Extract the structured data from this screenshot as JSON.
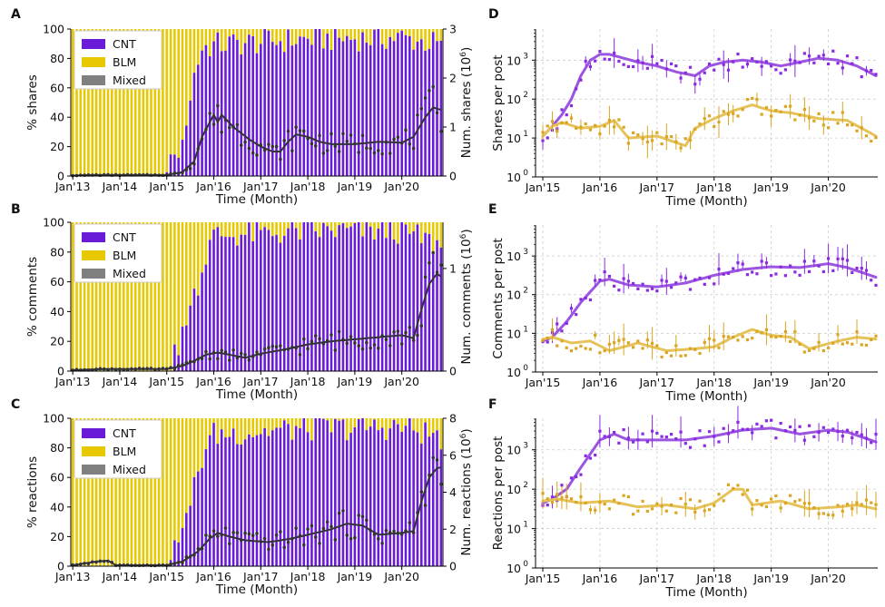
{
  "colors": {
    "cnt": "#6a1bd8",
    "blm": "#e8c800",
    "mixed": "#808080",
    "count_line": "#333333",
    "cnt_line": "#9b55e0",
    "blm_line": "#e5c35a",
    "cnt_point": "#8a2be2",
    "blm_point": "#daa520",
    "grid": "#cccccc"
  },
  "chart_data": [
    {
      "id": "A",
      "panel_letter": "A",
      "type": "bar",
      "stacked": true,
      "title": "",
      "xlabel": "Time (Month)",
      "ylabel": "% shares",
      "y2label": "Num. shares (10",
      "y2label_sup": "6",
      "y2label_end": ")",
      "xticks": [
        "Jan'13",
        "Jan'14",
        "Jan'15",
        "Jan'16",
        "Jan'17",
        "Jan'18",
        "Jan'19",
        "Jan'20"
      ],
      "ylim": [
        0,
        100
      ],
      "yticks": [
        "0",
        "20",
        "40",
        "60",
        "80",
        "100"
      ],
      "y2lim": [
        0,
        3
      ],
      "y2ticks": [
        "0",
        "1",
        "2",
        "3"
      ],
      "legend": [
        "CNT",
        "BLM",
        "Mixed"
      ],
      "legend_position": "top-left",
      "months": 95,
      "cnt_pct_anchors": [
        [
          0,
          0
        ],
        [
          23,
          0
        ],
        [
          24,
          4
        ],
        [
          27,
          18
        ],
        [
          29,
          30
        ],
        [
          30,
          55
        ],
        [
          31,
          70
        ],
        [
          33,
          88
        ],
        [
          36,
          90
        ],
        [
          48,
          92
        ],
        [
          60,
          94
        ],
        [
          84,
          95
        ],
        [
          94,
          90
        ]
      ],
      "count_line_anchors": [
        [
          0,
          0.01
        ],
        [
          5,
          0.02
        ],
        [
          24,
          0.02
        ],
        [
          28,
          0.08
        ],
        [
          31,
          0.3
        ],
        [
          33,
          0.8
        ],
        [
          35,
          1.1
        ],
        [
          36,
          1.25
        ],
        [
          37,
          1.1
        ],
        [
          38,
          1.25
        ],
        [
          41,
          1.0
        ],
        [
          45,
          0.75
        ],
        [
          48,
          0.6
        ],
        [
          51,
          0.5
        ],
        [
          53,
          0.5
        ],
        [
          55,
          0.7
        ],
        [
          57,
          0.85
        ],
        [
          60,
          0.8
        ],
        [
          63,
          0.7
        ],
        [
          66,
          0.65
        ],
        [
          72,
          0.65
        ],
        [
          78,
          0.7
        ],
        [
          84,
          0.68
        ],
        [
          87,
          0.8
        ],
        [
          90,
          1.2
        ],
        [
          92,
          1.4
        ],
        [
          94,
          1.35
        ]
      ]
    },
    {
      "id": "B",
      "panel_letter": "B",
      "type": "bar",
      "stacked": true,
      "title": "",
      "xlabel": "Time (Month)",
      "ylabel": "% comments",
      "y2label": "Num. comments (10",
      "y2label_sup": "6",
      "y2label_end": ")",
      "xticks": [
        "Jan'13",
        "Jan'14",
        "Jan'15",
        "Jan'16",
        "Jan'17",
        "Jan'18",
        "Jan'19",
        "Jan'20"
      ],
      "ylim": [
        0,
        100
      ],
      "yticks": [
        "0",
        "20",
        "40",
        "60",
        "80",
        "100"
      ],
      "y2lim": [
        0,
        1.45
      ],
      "y2ticks": [
        "0",
        "1"
      ],
      "legend": [
        "CNT",
        "BLM",
        "Mixed"
      ],
      "legend_position": "top-left",
      "months": 95,
      "cnt_pct_anchors": [
        [
          0,
          0
        ],
        [
          24,
          0
        ],
        [
          26,
          10
        ],
        [
          28,
          25
        ],
        [
          30,
          40
        ],
        [
          32,
          60
        ],
        [
          34,
          78
        ],
        [
          36,
          92
        ],
        [
          48,
          93
        ],
        [
          60,
          95
        ],
        [
          84,
          95
        ],
        [
          94,
          85
        ]
      ],
      "count_line_anchors": [
        [
          0,
          0.01
        ],
        [
          8,
          0.02
        ],
        [
          24,
          0.02
        ],
        [
          28,
          0.05
        ],
        [
          31,
          0.1
        ],
        [
          34,
          0.16
        ],
        [
          37,
          0.18
        ],
        [
          40,
          0.16
        ],
        [
          44,
          0.13
        ],
        [
          48,
          0.17
        ],
        [
          54,
          0.21
        ],
        [
          60,
          0.26
        ],
        [
          66,
          0.29
        ],
        [
          72,
          0.31
        ],
        [
          78,
          0.33
        ],
        [
          84,
          0.35
        ],
        [
          87,
          0.32
        ],
        [
          89,
          0.6
        ],
        [
          91,
          0.85
        ],
        [
          93,
          0.95
        ],
        [
          94,
          0.92
        ]
      ]
    },
    {
      "id": "C",
      "panel_letter": "C",
      "type": "bar",
      "stacked": true,
      "title": "",
      "xlabel": "Time (Month)",
      "ylabel": "% reactions",
      "y2label": "Num. reactions (10",
      "y2label_sup": "6",
      "y2label_end": ")",
      "xticks": [
        "Jan'13",
        "Jan'14",
        "Jan'15",
        "Jan'16",
        "Jan'17",
        "Jan'18",
        "Jan'19",
        "Jan'20"
      ],
      "ylim": [
        0,
        100
      ],
      "yticks": [
        "0",
        "20",
        "40",
        "60",
        "80",
        "100"
      ],
      "y2lim": [
        0,
        8
      ],
      "y2ticks": [
        "0",
        "2",
        "4",
        "6",
        "8"
      ],
      "legend": [
        "CNT",
        "BLM",
        "Mixed"
      ],
      "legend_position": "top-left",
      "months": 95,
      "cnt_pct_anchors": [
        [
          0,
          0
        ],
        [
          24,
          0
        ],
        [
          26,
          10
        ],
        [
          28,
          25
        ],
        [
          30,
          45
        ],
        [
          32,
          65
        ],
        [
          34,
          82
        ],
        [
          36,
          90
        ],
        [
          48,
          92
        ],
        [
          60,
          94
        ],
        [
          84,
          95
        ],
        [
          94,
          88
        ]
      ],
      "count_line_anchors": [
        [
          0,
          0.05
        ],
        [
          6,
          0.25
        ],
        [
          9,
          0.3
        ],
        [
          11,
          0.05
        ],
        [
          24,
          0.05
        ],
        [
          28,
          0.25
        ],
        [
          32,
          0.8
        ],
        [
          35,
          1.5
        ],
        [
          37,
          1.8
        ],
        [
          40,
          1.6
        ],
        [
          44,
          1.4
        ],
        [
          50,
          1.3
        ],
        [
          56,
          1.5
        ],
        [
          62,
          1.8
        ],
        [
          66,
          2.0
        ],
        [
          70,
          2.3
        ],
        [
          74,
          2.2
        ],
        [
          78,
          1.7
        ],
        [
          84,
          1.8
        ],
        [
          87,
          1.9
        ],
        [
          89,
          3.5
        ],
        [
          91,
          4.8
        ],
        [
          93,
          5.3
        ],
        [
          94,
          5.35
        ]
      ]
    },
    {
      "id": "D",
      "panel_letter": "D",
      "type": "line",
      "scale": "log",
      "title": "",
      "xlabel": "Time (Month)",
      "ylabel": "Shares per post",
      "xticks": [
        "Jan'15",
        "Jan'16",
        "Jan'17",
        "Jan'18",
        "Jan'19",
        "Jan'20"
      ],
      "ylim_log10": [
        0,
        3.8
      ],
      "yticks": [
        "10",
        "10",
        "10",
        "10"
      ],
      "ytick_exponents": [
        "0",
        "1",
        "2",
        "3"
      ],
      "months": 71,
      "grid": true,
      "series": [
        {
          "key": "cnt",
          "anchors": [
            [
              0,
              1.05
            ],
            [
              2,
              1.3
            ],
            [
              4,
              1.6
            ],
            [
              6,
              2.0
            ],
            [
              8,
              2.6
            ],
            [
              10,
              3.0
            ],
            [
              12,
              3.15
            ],
            [
              14,
              3.15
            ],
            [
              17,
              3.05
            ],
            [
              20,
              2.95
            ],
            [
              24,
              2.85
            ],
            [
              28,
              2.7
            ],
            [
              32,
              2.6
            ],
            [
              35,
              2.85
            ],
            [
              38,
              2.95
            ],
            [
              42,
              3.0
            ],
            [
              46,
              2.95
            ],
            [
              50,
              2.85
            ],
            [
              54,
              2.95
            ],
            [
              58,
              3.05
            ],
            [
              62,
              3.0
            ],
            [
              66,
              2.85
            ],
            [
              70,
              2.6
            ]
          ]
        },
        {
          "key": "blm",
          "anchors": [
            [
              0,
              1.05
            ],
            [
              2,
              1.3
            ],
            [
              4,
              1.4
            ],
            [
              8,
              1.25
            ],
            [
              12,
              1.3
            ],
            [
              15,
              1.45
            ],
            [
              18,
              1.0
            ],
            [
              24,
              1.05
            ],
            [
              30,
              0.8
            ],
            [
              32,
              1.25
            ],
            [
              36,
              1.5
            ],
            [
              40,
              1.7
            ],
            [
              44,
              1.85
            ],
            [
              48,
              1.7
            ],
            [
              52,
              1.65
            ],
            [
              58,
              1.5
            ],
            [
              64,
              1.45
            ],
            [
              70,
              1.05
            ]
          ]
        }
      ]
    },
    {
      "id": "E",
      "panel_letter": "E",
      "type": "line",
      "scale": "log",
      "title": "",
      "xlabel": "Time (Month)",
      "ylabel": "Comments per post",
      "xticks": [
        "Jan'15",
        "Jan'16",
        "Jan'17",
        "Jan'18",
        "Jan'19",
        "Jan'20"
      ],
      "ylim_log10": [
        0,
        3.8
      ],
      "yticks": [
        "10",
        "10",
        "10",
        "10"
      ],
      "ytick_exponents": [
        "0",
        "1",
        "2",
        "3"
      ],
      "months": 71,
      "grid": true,
      "series": [
        {
          "key": "cnt",
          "anchors": [
            [
              0,
              0.8
            ],
            [
              2,
              0.9
            ],
            [
              5,
              1.3
            ],
            [
              8,
              1.8
            ],
            [
              12,
              2.35
            ],
            [
              14,
              2.4
            ],
            [
              18,
              2.25
            ],
            [
              24,
              2.2
            ],
            [
              30,
              2.3
            ],
            [
              36,
              2.5
            ],
            [
              42,
              2.65
            ],
            [
              48,
              2.72
            ],
            [
              54,
              2.7
            ],
            [
              60,
              2.8
            ],
            [
              64,
              2.7
            ],
            [
              70,
              2.45
            ]
          ]
        },
        {
          "key": "blm",
          "anchors": [
            [
              0,
              0.85
            ],
            [
              2,
              0.9
            ],
            [
              6,
              0.75
            ],
            [
              10,
              0.8
            ],
            [
              14,
              0.55
            ],
            [
              20,
              0.75
            ],
            [
              26,
              0.55
            ],
            [
              32,
              0.6
            ],
            [
              36,
              0.65
            ],
            [
              40,
              0.9
            ],
            [
              44,
              1.1
            ],
            [
              48,
              0.95
            ],
            [
              52,
              0.9
            ],
            [
              56,
              0.6
            ],
            [
              62,
              0.8
            ],
            [
              66,
              0.9
            ],
            [
              70,
              0.85
            ]
          ]
        }
      ]
    },
    {
      "id": "F",
      "panel_letter": "F",
      "type": "line",
      "scale": "log",
      "title": "",
      "xlabel": "Time (Month)",
      "ylabel": "Reactions per post",
      "xticks": [
        "Jan'15",
        "Jan'16",
        "Jan'17",
        "Jan'18",
        "Jan'19",
        "Jan'20"
      ],
      "ylim_log10": [
        0,
        3.8
      ],
      "yticks": [
        "10",
        "10",
        "10",
        "10"
      ],
      "ytick_exponents": [
        "0",
        "1",
        "2",
        "3"
      ],
      "months": 71,
      "grid": true,
      "series": [
        {
          "key": "cnt",
          "anchors": [
            [
              0,
              1.65
            ],
            [
              2,
              1.75
            ],
            [
              5,
              2.0
            ],
            [
              8,
              2.55
            ],
            [
              12,
              3.25
            ],
            [
              15,
              3.4
            ],
            [
              18,
              3.25
            ],
            [
              24,
              3.25
            ],
            [
              30,
              3.25
            ],
            [
              36,
              3.35
            ],
            [
              42,
              3.5
            ],
            [
              48,
              3.55
            ],
            [
              54,
              3.4
            ],
            [
              60,
              3.5
            ],
            [
              64,
              3.45
            ],
            [
              70,
              3.2
            ]
          ]
        },
        {
          "key": "blm",
          "anchors": [
            [
              0,
              1.7
            ],
            [
              3,
              1.75
            ],
            [
              8,
              1.65
            ],
            [
              14,
              1.7
            ],
            [
              20,
              1.55
            ],
            [
              26,
              1.6
            ],
            [
              32,
              1.5
            ],
            [
              36,
              1.65
            ],
            [
              40,
              2.0
            ],
            [
              42,
              2.0
            ],
            [
              44,
              1.6
            ],
            [
              50,
              1.7
            ],
            [
              56,
              1.5
            ],
            [
              62,
              1.55
            ],
            [
              66,
              1.6
            ],
            [
              70,
              1.5
            ]
          ]
        }
      ]
    }
  ]
}
